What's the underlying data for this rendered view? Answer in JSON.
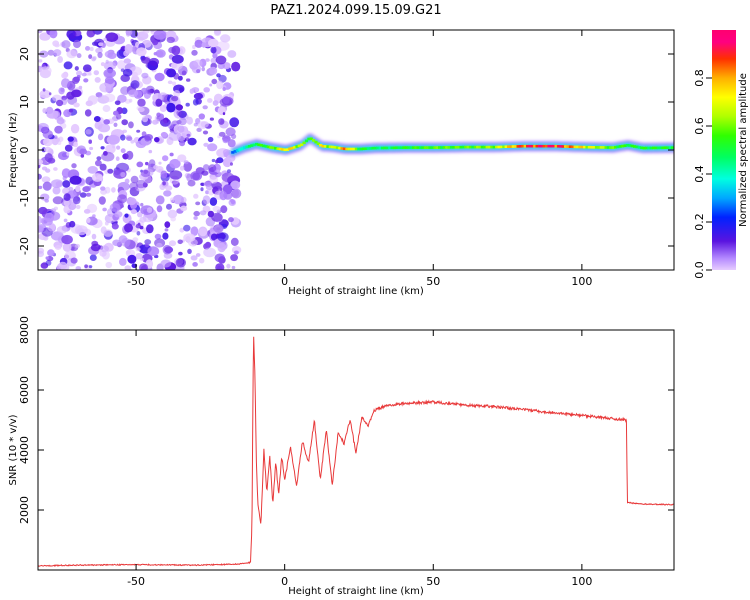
{
  "figure": {
    "title": "PAZ1.2024.099.15.09.G21"
  },
  "chart_data": [
    {
      "type": "heatmap",
      "xlabel": "Height of straight line (km)",
      "ylabel": "Frequency (Hz)",
      "xlim": [
        -83,
        131
      ],
      "ylim": [
        -25,
        25
      ],
      "xticks": [
        -50,
        0,
        50,
        100
      ],
      "yticks": [
        -20,
        -10,
        0,
        10,
        20
      ],
      "colorbar": {
        "label": "Normalized spectral amplitude",
        "range": [
          0,
          1
        ],
        "ticks": [
          0.0,
          0.2,
          0.4,
          0.6,
          0.8
        ],
        "colormap": "gist_ncar_like"
      },
      "noise_region": {
        "x_range": [
          -83,
          -16
        ],
        "y_range": [
          -25,
          25
        ]
      },
      "signal_track": {
        "x": [
          -18,
          -14,
          -10,
          -5,
          0,
          5,
          8,
          12,
          16,
          20,
          25,
          30,
          40,
          50,
          60,
          70,
          80,
          90,
          100,
          110,
          115,
          120,
          131
        ],
        "freq": [
          -0.5,
          0.5,
          1.2,
          0.5,
          0.0,
          1.0,
          2.5,
          0.8,
          0.6,
          0.2,
          0.2,
          0.4,
          0.5,
          0.5,
          0.6,
          0.6,
          0.8,
          0.8,
          0.6,
          0.5,
          1.0,
          0.4,
          0.5
        ],
        "amplitude": [
          0.25,
          0.4,
          0.5,
          0.55,
          0.75,
          0.6,
          0.5,
          0.7,
          0.6,
          0.8,
          0.5,
          0.45,
          0.5,
          0.55,
          0.55,
          0.6,
          0.85,
          0.9,
          0.7,
          0.55,
          0.5,
          0.5,
          0.5
        ]
      }
    },
    {
      "type": "line",
      "xlabel": "Height of straight line (km)",
      "ylabel": "SNR (10 * v/v)",
      "xlim": [
        -83,
        131
      ],
      "ylim": [
        0,
        8000
      ],
      "xticks": [
        -50,
        0,
        50,
        100
      ],
      "yticks": [
        2000,
        4000,
        6000,
        8000
      ],
      "color": "#e8393a",
      "segments": [
        {
          "x": [
            -83,
            -70,
            -50,
            -30,
            -15,
            -11.5
          ],
          "y": [
            140,
            160,
            180,
            160,
            200,
            250
          ]
        },
        {
          "x": [
            -11.5,
            -11,
            -10.5,
            -10,
            -9.5,
            -9,
            -8,
            -7,
            -6,
            -5,
            -4,
            -3,
            -2,
            -1,
            0,
            2,
            4,
            6,
            8,
            10,
            12,
            14,
            16,
            18,
            20,
            22,
            24,
            26,
            28,
            30,
            32,
            35
          ],
          "y": [
            250,
            1500,
            8000,
            6500,
            3500,
            2200,
            1500,
            4000,
            2600,
            3800,
            2200,
            3600,
            2500,
            3800,
            3000,
            4100,
            2800,
            4300,
            3600,
            5000,
            3000,
            4700,
            2800,
            4600,
            4200,
            5000,
            3900,
            5100,
            4800,
            5300,
            5400,
            5500
          ]
        },
        {
          "x": [
            35,
            40,
            50,
            60,
            70,
            80,
            90,
            100,
            105,
            110,
            115
          ],
          "y": [
            5500,
            5550,
            5600,
            5500,
            5450,
            5350,
            5250,
            5150,
            5100,
            5050,
            5000
          ]
        },
        {
          "x": [
            115,
            115.3,
            120,
            131
          ],
          "y": [
            5000,
            2250,
            2200,
            2180
          ]
        }
      ]
    }
  ]
}
